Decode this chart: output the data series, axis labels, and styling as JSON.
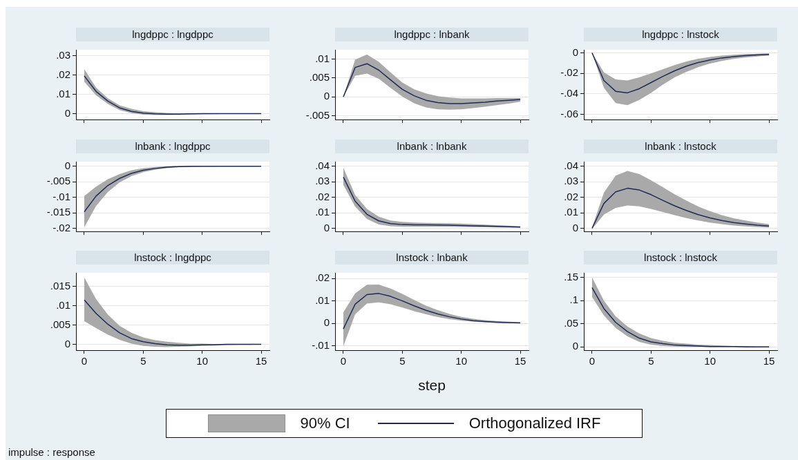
{
  "chart_data": [
    {
      "type": "line",
      "title": "lngdppc : lngdppc",
      "x": [
        0,
        1,
        2,
        3,
        4,
        5,
        6,
        7,
        8,
        9,
        10,
        11,
        12,
        13,
        14,
        15
      ],
      "xlim": [
        -0.7,
        15.7
      ],
      "xticks": [
        0,
        5,
        10,
        15
      ],
      "ylim": [
        -0.003,
        0.033
      ],
      "yticks": [
        {
          "value": 0,
          "label": "0"
        },
        {
          "value": 0.01,
          "label": ".01"
        },
        {
          "value": 0.02,
          "label": ".02"
        },
        {
          "value": 0.03,
          "label": ".03"
        }
      ],
      "grid": "y",
      "tick_labels": "y",
      "series": [
        {
          "color": "#1f2a55",
          "values": [
            0.0195,
            0.0115,
            0.0065,
            0.003,
            0.0012,
            0.0003,
            -0.0001,
            -0.0002,
            -0.0002,
            -0.0001,
            0,
            0,
            0,
            0,
            0,
            0
          ],
          "lower": [
            0.0165,
            0.0095,
            0.005,
            0.0018,
            0.0003,
            -0.0005,
            -0.0007,
            -0.0007,
            -0.0006,
            -0.0004,
            -0.0003,
            -0.0002,
            -0.0001,
            -0.0001,
            0,
            0
          ],
          "upper": [
            0.023,
            0.0135,
            0.008,
            0.0043,
            0.0025,
            0.0013,
            0.0007,
            0.0004,
            0.0002,
            0.0001,
            0.0001,
            0.0001,
            0,
            0,
            0,
            0
          ]
        }
      ]
    },
    {
      "type": "line",
      "title": "lngdppc : lnbank",
      "x": [
        0,
        1,
        2,
        3,
        4,
        5,
        6,
        7,
        8,
        9,
        10,
        11,
        12,
        13,
        14,
        15
      ],
      "xlim": [
        -0.7,
        15.7
      ],
      "xticks": [
        0,
        5,
        10,
        15
      ],
      "ylim": [
        -0.006,
        0.0125
      ],
      "yticks": [
        {
          "value": -0.005,
          "label": "-.005"
        },
        {
          "value": 0,
          "label": "0"
        },
        {
          "value": 0.005,
          "label": ".005"
        },
        {
          "value": 0.01,
          "label": ".01"
        }
      ],
      "grid": "y",
      "tick_labels": "y",
      "series": [
        {
          "color": "#1f2a55",
          "values": [
            0,
            0.0078,
            0.0088,
            0.0071,
            0.0045,
            0.002,
            0.0003,
            -0.0009,
            -0.0015,
            -0.0018,
            -0.0018,
            -0.0016,
            -0.0014,
            -0.0011,
            -0.0009,
            -0.0007
          ],
          "lower": [
            0,
            0.0056,
            0.0062,
            0.0048,
            0.0024,
            0.0001,
            -0.0017,
            -0.0028,
            -0.0033,
            -0.0034,
            -0.0033,
            -0.003,
            -0.0026,
            -0.0022,
            -0.0018,
            -0.0013
          ],
          "upper": [
            0,
            0.0099,
            0.0112,
            0.0093,
            0.0065,
            0.0038,
            0.002,
            0.0009,
            0.0002,
            -0.0002,
            -0.0004,
            -0.0004,
            -0.0004,
            -0.0003,
            -0.0003,
            -0.0003
          ]
        }
      ]
    },
    {
      "type": "line",
      "title": "lngdppc : lnstock",
      "x": [
        0,
        1,
        2,
        3,
        4,
        5,
        6,
        7,
        8,
        9,
        10,
        11,
        12,
        13,
        14,
        15
      ],
      "xlim": [
        -0.7,
        15.7
      ],
      "xticks": [
        0,
        5,
        10,
        15
      ],
      "ylim": [
        -0.065,
        0.003
      ],
      "yticks": [
        {
          "value": -0.06,
          "label": "-.06"
        },
        {
          "value": -0.04,
          "label": "-.04"
        },
        {
          "value": -0.02,
          "label": "-.02"
        },
        {
          "value": 0,
          "label": "0"
        }
      ],
      "grid": "y",
      "tick_labels": "y",
      "series": [
        {
          "color": "#1f2a55",
          "values": [
            0,
            -0.027,
            -0.0375,
            -0.039,
            -0.035,
            -0.029,
            -0.023,
            -0.0175,
            -0.013,
            -0.0095,
            -0.007,
            -0.005,
            -0.0037,
            -0.0027,
            -0.002,
            -0.0015
          ],
          "lower": [
            0,
            -0.034,
            -0.049,
            -0.051,
            -0.046,
            -0.039,
            -0.031,
            -0.024,
            -0.0185,
            -0.014,
            -0.0105,
            -0.008,
            -0.006,
            -0.0045,
            -0.0035,
            -0.0027
          ],
          "upper": [
            0,
            -0.019,
            -0.026,
            -0.027,
            -0.024,
            -0.02,
            -0.016,
            -0.012,
            -0.0085,
            -0.0058,
            -0.004,
            -0.0027,
            -0.0018,
            -0.0012,
            -0.0008,
            -0.0005
          ]
        }
      ]
    },
    {
      "type": "line",
      "title": "lnbank : lngdppc",
      "x": [
        0,
        1,
        2,
        3,
        4,
        5,
        6,
        7,
        8,
        9,
        10,
        11,
        12,
        13,
        14,
        15
      ],
      "xlim": [
        -0.7,
        15.7
      ],
      "xticks": [
        0,
        5,
        10,
        15
      ],
      "ylim": [
        -0.021,
        0.0015
      ],
      "yticks": [
        {
          "value": -0.02,
          "label": "-.02"
        },
        {
          "value": -0.015,
          "label": "-.015"
        },
        {
          "value": -0.01,
          "label": "-.01"
        },
        {
          "value": -0.005,
          "label": "-.005"
        },
        {
          "value": 0,
          "label": "0"
        }
      ],
      "grid": "y",
      "tick_labels": "y",
      "series": [
        {
          "color": "#1f2a55",
          "values": [
            -0.0147,
            -0.0096,
            -0.0062,
            -0.0039,
            -0.0023,
            -0.0013,
            -0.0007,
            -0.0003,
            -0.0001,
            0,
            0,
            0,
            0,
            0,
            0,
            0
          ],
          "lower": [
            -0.0197,
            -0.0128,
            -0.0083,
            -0.0052,
            -0.0032,
            -0.0019,
            -0.0011,
            -0.0006,
            -0.0003,
            -0.0002,
            -0.0001,
            -0.0001,
            0,
            0,
            0,
            0
          ],
          "upper": [
            -0.0096,
            -0.0066,
            -0.0042,
            -0.0025,
            -0.0013,
            -0.0006,
            -0.0002,
            0,
            0.0001,
            0.0001,
            0.0001,
            0,
            0,
            0,
            0,
            0
          ]
        }
      ]
    },
    {
      "type": "line",
      "title": "lnbank : lnbank",
      "x": [
        0,
        1,
        2,
        3,
        4,
        5,
        6,
        7,
        8,
        9,
        10,
        11,
        12,
        13,
        14,
        15
      ],
      "xlim": [
        -0.7,
        15.7
      ],
      "xticks": [
        0,
        5,
        10,
        15
      ],
      "ylim": [
        -0.002,
        0.043
      ],
      "yticks": [
        {
          "value": 0,
          "label": "0"
        },
        {
          "value": 0.01,
          "label": ".01"
        },
        {
          "value": 0.02,
          "label": ".02"
        },
        {
          "value": 0.03,
          "label": ".03"
        },
        {
          "value": 0.04,
          "label": ".04"
        }
      ],
      "grid": "y",
      "tick_labels": "y",
      "series": [
        {
          "color": "#1f2a55",
          "values": [
            0.033,
            0.0175,
            0.009,
            0.0048,
            0.003,
            0.0024,
            0.0022,
            0.0022,
            0.0021,
            0.002,
            0.0018,
            0.0016,
            0.0014,
            0.0012,
            0.001,
            0.0008
          ],
          "lower": [
            0.028,
            0.014,
            0.006,
            0.0025,
            0.0013,
            0.001,
            0.001,
            0.001,
            0.001,
            0.001,
            0.0009,
            0.0008,
            0.0007,
            0.0006,
            0.0005,
            0.0004
          ],
          "upper": [
            0.039,
            0.0215,
            0.0125,
            0.0075,
            0.005,
            0.0041,
            0.0037,
            0.0035,
            0.0034,
            0.0032,
            0.003,
            0.0027,
            0.0023,
            0.002,
            0.0017,
            0.0013
          ]
        }
      ]
    },
    {
      "type": "line",
      "title": "lnbank : lnstock",
      "x": [
        0,
        1,
        2,
        3,
        4,
        5,
        6,
        7,
        8,
        9,
        10,
        11,
        12,
        13,
        14,
        15
      ],
      "xlim": [
        -0.7,
        15.7
      ],
      "xticks": [
        0,
        5,
        10,
        15
      ],
      "ylim": [
        -0.002,
        0.043
      ],
      "yticks": [
        {
          "value": 0,
          "label": "0"
        },
        {
          "value": 0.01,
          "label": ".01"
        },
        {
          "value": 0.02,
          "label": ".02"
        },
        {
          "value": 0.03,
          "label": ".03"
        },
        {
          "value": 0.04,
          "label": ".04"
        }
      ],
      "grid": "y",
      "tick_labels": "y",
      "series": [
        {
          "color": "#1f2a55",
          "values": [
            0,
            0.016,
            0.0235,
            0.0258,
            0.0247,
            0.0217,
            0.018,
            0.0145,
            0.0115,
            0.0088,
            0.0067,
            0.005,
            0.0037,
            0.0028,
            0.002,
            0.0015
          ],
          "lower": [
            -0.0005,
            0.0088,
            0.0132,
            0.0147,
            0.0142,
            0.0125,
            0.0105,
            0.0085,
            0.0066,
            0.005,
            0.0037,
            0.0027,
            0.0018,
            0.0012,
            0.0008,
            0.0005
          ],
          "upper": [
            0.0005,
            0.023,
            0.034,
            0.037,
            0.035,
            0.031,
            0.0265,
            0.022,
            0.0178,
            0.014,
            0.011,
            0.0085,
            0.0065,
            0.005,
            0.0037,
            0.0027
          ]
        }
      ]
    },
    {
      "type": "line",
      "title": "lnstock : lngdppc",
      "x": [
        0,
        1,
        2,
        3,
        4,
        5,
        6,
        7,
        8,
        9,
        10,
        11,
        12,
        13,
        14,
        15
      ],
      "xlim": [
        -0.7,
        15.7
      ],
      "xticks": [
        0,
        5,
        10,
        15
      ],
      "ylim": [
        -0.0015,
        0.0185
      ],
      "yticks": [
        {
          "value": 0,
          "label": "0"
        },
        {
          "value": 0.005,
          "label": ".005"
        },
        {
          "value": 0.01,
          "label": ".01"
        },
        {
          "value": 0.015,
          "label": ".015"
        }
      ],
      "grid": "y",
      "annotations": [
        "impulse : response"
      ],
      "series": [
        {
          "color": "#1f2a55",
          "values": [
            0.0115,
            0.008,
            0.0052,
            0.003,
            0.0015,
            0.0007,
            0.0002,
            -0.0001,
            -0.0002,
            -0.0002,
            -0.0001,
            -0.0001,
            0,
            0,
            0,
            0
          ],
          "lower": [
            0.006,
            0.0042,
            0.0025,
            0.0012,
            0.0002,
            -0.0004,
            -0.0006,
            -0.0007,
            -0.0006,
            -0.0005,
            -0.0004,
            -0.0003,
            -0.0002,
            -0.0001,
            -0.0001,
            0
          ],
          "upper": [
            0.0173,
            0.0117,
            0.0077,
            0.0048,
            0.003,
            0.0018,
            0.0011,
            0.0007,
            0.0004,
            0.0002,
            0.0002,
            0.0001,
            0.0001,
            0,
            0,
            0
          ]
        }
      ]
    },
    {
      "type": "line",
      "title": "lnstock : lnbank",
      "xlabel": "step",
      "x": [
        0,
        1,
        2,
        3,
        4,
        5,
        6,
        7,
        8,
        9,
        10,
        11,
        12,
        13,
        14,
        15
      ],
      "xlim": [
        -0.7,
        15.7
      ],
      "xticks": [
        0,
        5,
        10,
        15
      ],
      "ylim": [
        -0.012,
        0.0225
      ],
      "yticks": [
        {
          "value": -0.01,
          "label": "-.01"
        },
        {
          "value": 0,
          "label": "0"
        },
        {
          "value": 0.01,
          "label": ".01"
        },
        {
          "value": 0.02,
          "label": ".02"
        }
      ],
      "grid": "y",
      "legend": "bottom",
      "annotations": [
        "90% CI"
      ],
      "series": [
        {
          "name": "Orthogonalized IRF",
          "color": "#1f2a55",
          "values": [
            -0.0025,
            0.0085,
            0.0128,
            0.0133,
            0.012,
            0.01,
            0.0078,
            0.0058,
            0.0042,
            0.0029,
            0.0019,
            0.0012,
            0.0008,
            0.0005,
            0.0003,
            0.0002
          ],
          "lower": [
            -0.0102,
            0.004,
            0.0088,
            0.0093,
            0.0085,
            0.007,
            0.0054,
            0.004,
            0.0028,
            0.0019,
            0.0012,
            0.0007,
            0.0004,
            0.0002,
            0.0001,
            0
          ],
          "upper": [
            0.0049,
            0.0133,
            0.0172,
            0.0173,
            0.0155,
            0.0131,
            0.0104,
            0.0079,
            0.0059,
            0.0042,
            0.0029,
            0.002,
            0.0014,
            0.001,
            0.0007,
            0.0005
          ]
        }
      ]
    },
    {
      "type": "line",
      "title": "lnstock : lnstock",
      "x": [
        0,
        1,
        2,
        3,
        4,
        5,
        6,
        7,
        8,
        9,
        10,
        11,
        12,
        13,
        14,
        15
      ],
      "xlim": [
        -0.7,
        15.7
      ],
      "xticks": [
        0,
        5,
        10,
        15
      ],
      "ylim": [
        -0.007,
        0.16
      ],
      "yticks": [
        {
          "value": 0,
          "label": "0"
        },
        {
          "value": 0.05,
          "label": ".05"
        },
        {
          "value": 0.1,
          "label": ".1"
        },
        {
          "value": 0.15,
          "label": ".15"
        }
      ],
      "grid": "y",
      "series": [
        {
          "color": "#1f2a55",
          "values": [
            0.128,
            0.083,
            0.053,
            0.033,
            0.019,
            0.011,
            0.007,
            0.004,
            0.003,
            0.002,
            0.001,
            0.001,
            0.001,
            0,
            0,
            0
          ],
          "lower": [
            0.108,
            0.068,
            0.041,
            0.023,
            0.011,
            0.005,
            0.002,
            0.001,
            0,
            0,
            0,
            0,
            0,
            0,
            0,
            0
          ],
          "upper": [
            0.15,
            0.1,
            0.066,
            0.044,
            0.029,
            0.019,
            0.013,
            0.009,
            0.007,
            0.005,
            0.004,
            0.003,
            0.002,
            0.002,
            0.001,
            0.001
          ]
        }
      ]
    }
  ]
}
